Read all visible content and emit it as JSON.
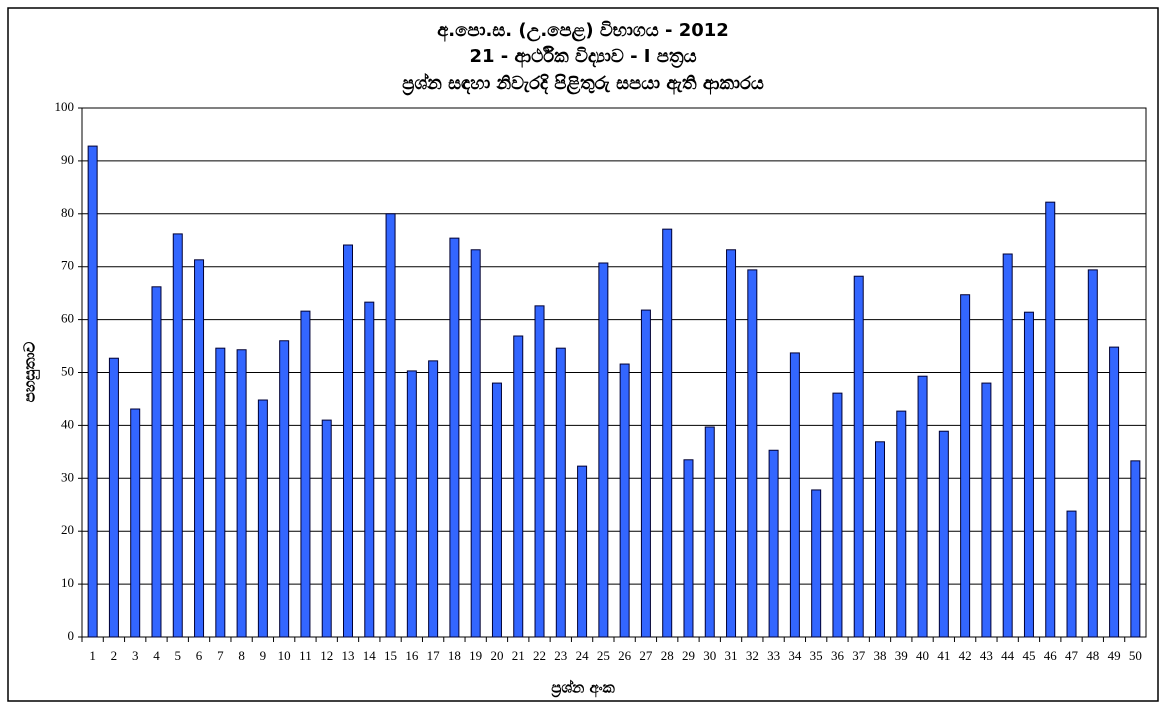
{
  "chart_data": {
    "type": "bar",
    "title": [
      "අ.පො.ස. (උ.පෙළ) විභාගය - 2012",
      "21 - ආර්ථික විද්‍යාව - I පත්‍රය",
      "ප්‍රශ්න සඳහා නිවැරදි පිළිතුරු සපයා ඇති ආකාරය"
    ],
    "x_label": "ප්‍රශ්න අංක",
    "y_label": "පහසුතාව",
    "categories": [
      "1",
      "2",
      "3",
      "4",
      "5",
      "6",
      "7",
      "8",
      "9",
      "10",
      "11",
      "12",
      "13",
      "14",
      "15",
      "16",
      "17",
      "18",
      "19",
      "20",
      "21",
      "22",
      "23",
      "24",
      "25",
      "26",
      "27",
      "28",
      "29",
      "30",
      "31",
      "32",
      "33",
      "34",
      "35",
      "36",
      "37",
      "38",
      "39",
      "40",
      "41",
      "42",
      "43",
      "44",
      "45",
      "46",
      "47",
      "48",
      "49",
      "50"
    ],
    "values": [
      92.8,
      52.7,
      43.1,
      66.2,
      76.2,
      71.3,
      54.6,
      54.3,
      44.8,
      56.0,
      61.6,
      41.0,
      74.1,
      63.3,
      80.0,
      50.3,
      52.2,
      75.4,
      73.2,
      48.0,
      56.9,
      62.6,
      54.6,
      32.3,
      70.7,
      51.6,
      61.8,
      77.1,
      33.5,
      39.7,
      73.2,
      69.4,
      35.3,
      53.7,
      27.8,
      46.1,
      68.2,
      36.9,
      42.7,
      49.3,
      38.9,
      64.7,
      48.0,
      72.4,
      61.4,
      82.2,
      23.8,
      69.4,
      54.8,
      33.3
    ],
    "color": "#3366ff",
    "ylim": [
      0,
      100
    ],
    "yticks": [
      0,
      10,
      20,
      30,
      40,
      50,
      60,
      70,
      80,
      90,
      100
    ],
    "grid": true
  }
}
